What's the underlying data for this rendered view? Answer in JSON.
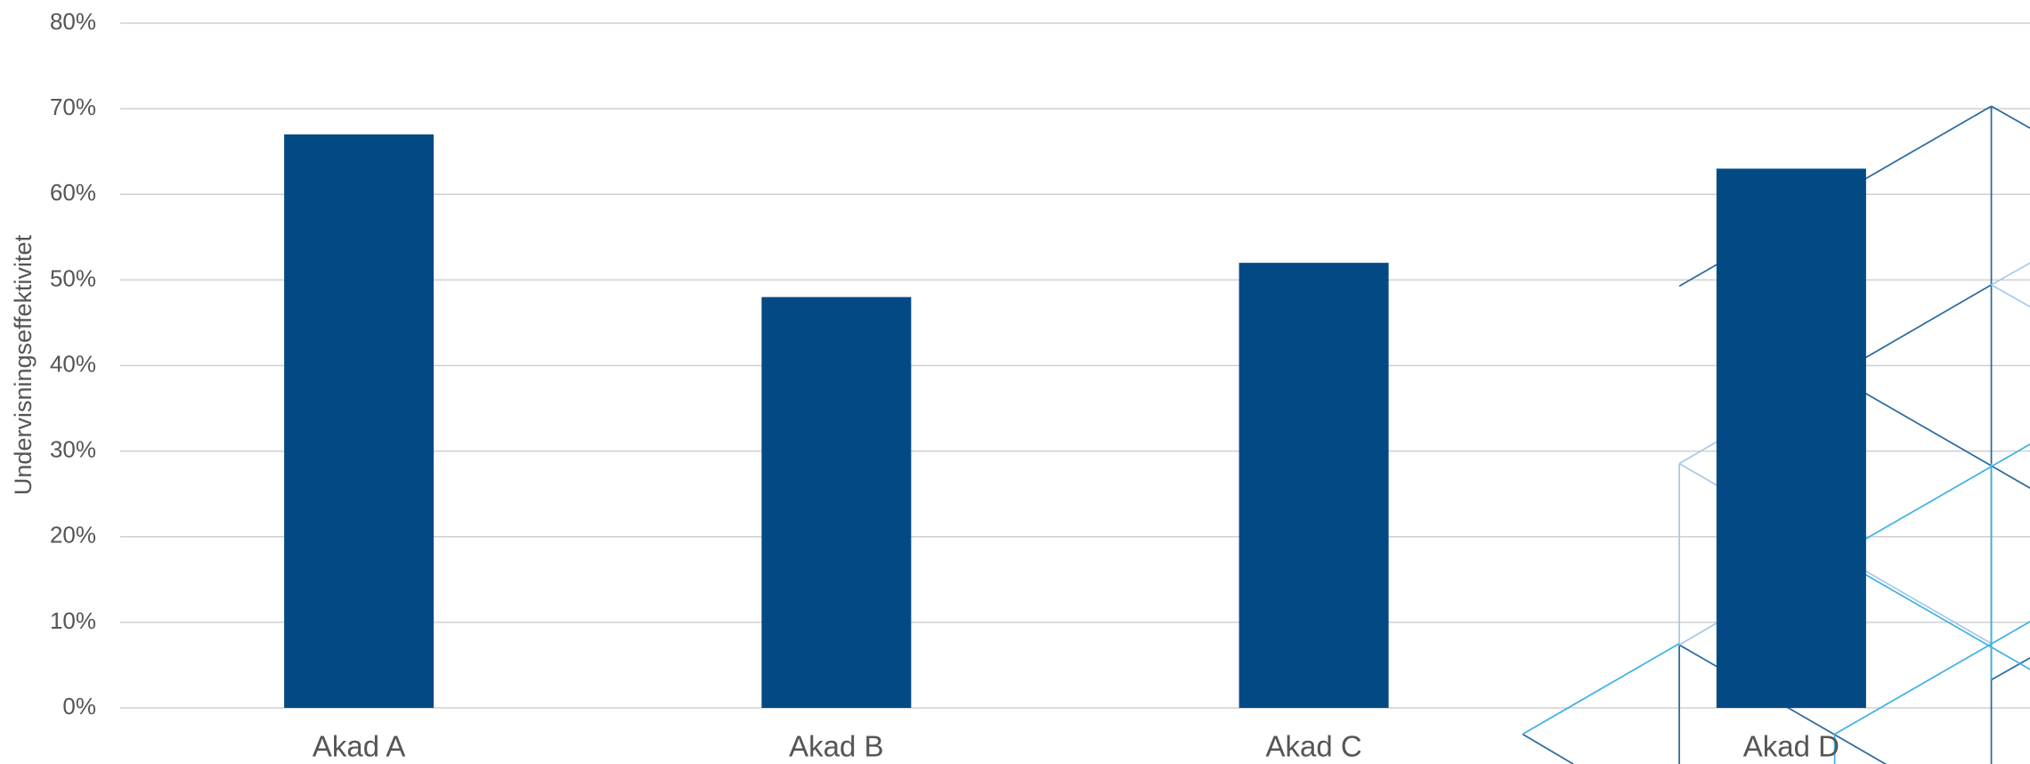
{
  "chart_data": {
    "type": "bar",
    "y_label": "Undervisningseffektivitet",
    "categories": [
      "Akad A",
      "Akad B",
      "Akad C",
      "Akad D"
    ],
    "values": [
      67,
      48,
      52,
      63
    ],
    "color": "#034a85",
    "ylim": [
      0,
      80
    ],
    "yticks": [
      {
        "value": 0,
        "label": "0%"
      },
      {
        "value": 10,
        "label": "10%"
      },
      {
        "value": 20,
        "label": "20%"
      },
      {
        "value": 30,
        "label": "30%"
      },
      {
        "value": 40,
        "label": "40%"
      },
      {
        "value": 50,
        "label": "50%"
      },
      {
        "value": 60,
        "label": "60%"
      },
      {
        "value": 70,
        "label": "70%"
      },
      {
        "value": 80,
        "label": "80%"
      }
    ],
    "grid": true
  }
}
